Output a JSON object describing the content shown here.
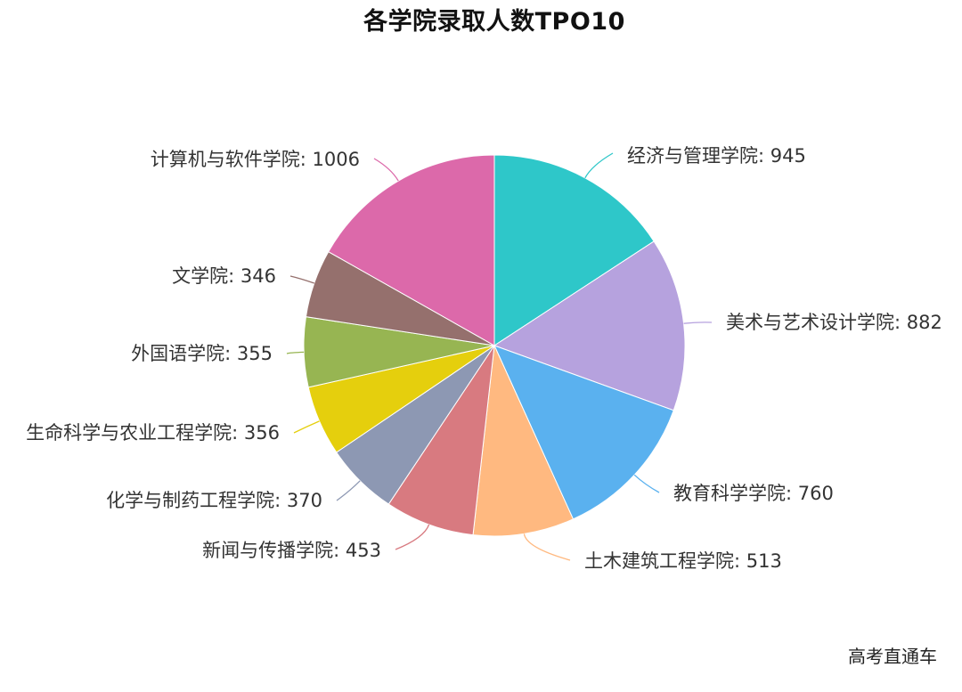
{
  "chart_data": {
    "type": "pie",
    "title": "各学院录取人数TPO10",
    "slices": [
      {
        "label": "经济与管理学院",
        "value": 945,
        "color": "#2ec7c9"
      },
      {
        "label": "美术与艺术设计学院",
        "value": 882,
        "color": "#b6a2de"
      },
      {
        "label": "教育科学学院",
        "value": 760,
        "color": "#5ab1ef"
      },
      {
        "label": "土木建筑工程学院",
        "value": 513,
        "color": "#ffb980"
      },
      {
        "label": "新闻与传播学院",
        "value": 453,
        "color": "#d87a80"
      },
      {
        "label": "化学与制药工程学院",
        "value": 370,
        "color": "#8d98b3"
      },
      {
        "label": "生命科学与农业工程学院",
        "value": 356,
        "color": "#e5cf0d"
      },
      {
        "label": "外国语学院",
        "value": 355,
        "color": "#97b552"
      },
      {
        "label": "文学院",
        "value": 346,
        "color": "#95706d"
      },
      {
        "label": "计算机与软件学院",
        "value": 1006,
        "color": "#dc69aa"
      }
    ]
  },
  "watermark": "高考直通车"
}
